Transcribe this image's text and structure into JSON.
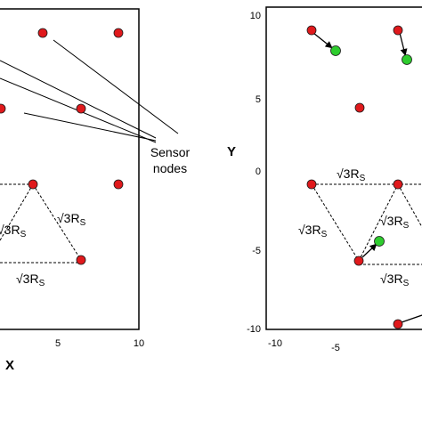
{
  "colors": {
    "original_node": "#e0191c",
    "moved_node": "#2ecc2e",
    "node_stroke": "#1a1a1a",
    "line": "#000000"
  },
  "annotation": {
    "line1": "Sensor",
    "line2": "nodes"
  },
  "distance_label": "√3R",
  "distance_subscript": "S",
  "left_panel": {
    "xlabel": "X",
    "xticks": [
      "5",
      "10"
    ]
  },
  "right_panel": {
    "ylabel": "Y",
    "yticks": [
      "10",
      "5",
      "0",
      "-5",
      "-10"
    ],
    "xticks": [
      "-10",
      "-5"
    ]
  }
}
